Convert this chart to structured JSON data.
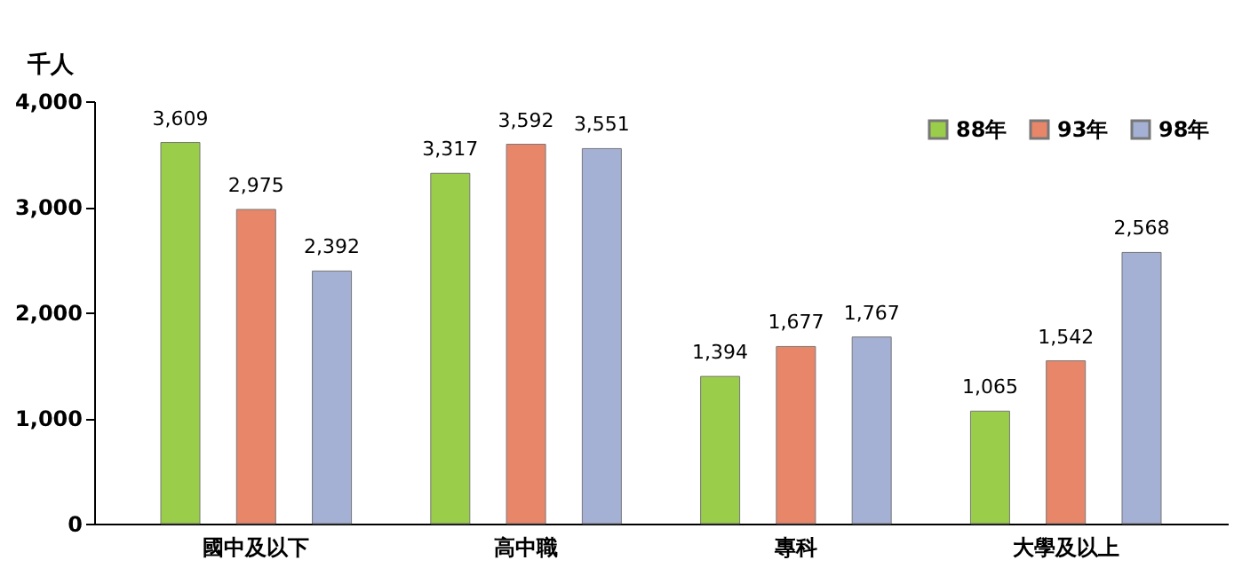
{
  "chart_data": {
    "type": "bar",
    "ylabel": "千人",
    "categories": [
      "國中及以下",
      "高中職",
      "專科",
      "大學及以上"
    ],
    "series": [
      {
        "name": "88年",
        "color": "#9acd4a",
        "values": [
          3609,
          3317,
          1394,
          1065
        ],
        "value_labels": [
          "3,609",
          "3,317",
          "1,394",
          "1,065"
        ]
      },
      {
        "name": "93年",
        "color": "#e8866a",
        "values": [
          2975,
          3592,
          1677,
          1542
        ],
        "value_labels": [
          "2,975",
          "3,592",
          "1,677",
          "1,542"
        ]
      },
      {
        "name": "98年",
        "color": "#a4b0d4",
        "values": [
          2392,
          3551,
          1767,
          2568
        ],
        "value_labels": [
          "2,392",
          "3,551",
          "1,767",
          "2,568"
        ]
      }
    ],
    "ylim": [
      0,
      4000
    ],
    "yticks": [
      0,
      {
        "value": 1000,
        "label": "1,000"
      },
      {
        "value": 2000,
        "label": "2,000"
      },
      {
        "value": 3000,
        "label": "3,000"
      },
      {
        "value": 4000,
        "label": "4,000"
      }
    ],
    "legend": "top right",
    "grid": false
  }
}
